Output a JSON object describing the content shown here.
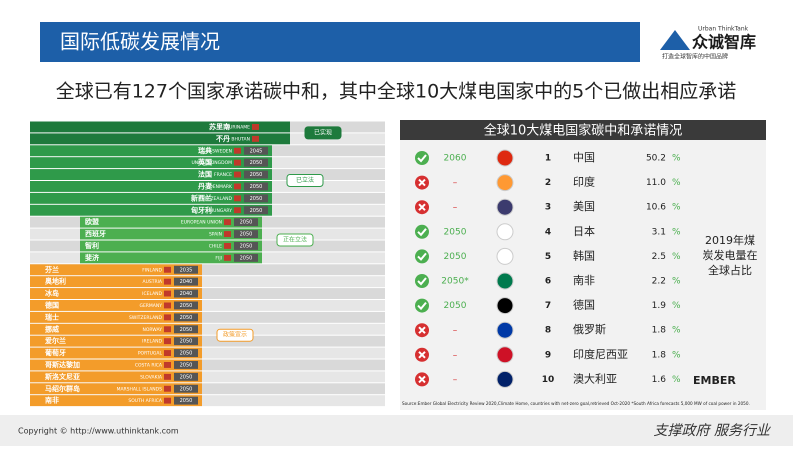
{
  "header": {
    "title": "国际低碳发展情况",
    "logo_en": "Urban ThinkTank",
    "logo_cn": "众诚智库",
    "logo_slogan": "打造全球智库的中国品牌"
  },
  "headline": "全球已有127个国家承诺碳中和，其中全球10大煤电国家中的5个已做出相应承诺",
  "left": {
    "groups": [
      {
        "label": "已实现",
        "rows": [
          {
            "cn": "苏里南",
            "en": "SURINAME",
            "year": null
          },
          {
            "cn": "不丹",
            "en": "BHUTAN",
            "year": null
          }
        ]
      },
      {
        "label": "已立法",
        "rows": [
          {
            "cn": "瑞典",
            "en": "SWEDEN",
            "year": "2045"
          },
          {
            "cn": "英国",
            "en": "UNITED KINGDOM",
            "year": "2050"
          },
          {
            "cn": "法国",
            "en": "FRANCE",
            "year": "2050"
          },
          {
            "cn": "丹麦",
            "en": "DENMARK",
            "year": "2050"
          },
          {
            "cn": "新西兰",
            "en": "NEW ZEALAND",
            "year": "2050"
          },
          {
            "cn": "匈牙利",
            "en": "HUNGARY",
            "year": "2050"
          }
        ]
      },
      {
        "label": "正在立法",
        "rows": [
          {
            "cn": "欧盟",
            "en": "EUROPEAN UNION",
            "year": "2050"
          },
          {
            "cn": "西班牙",
            "en": "SPAIN",
            "year": "2050"
          },
          {
            "cn": "智利",
            "en": "CHILE",
            "year": "2050"
          },
          {
            "cn": "斐济",
            "en": "FIJI",
            "year": "2050"
          }
        ]
      },
      {
        "label": "政策宣示",
        "rows": [
          {
            "cn": "芬兰",
            "en": "FINLAND",
            "year": "2035"
          },
          {
            "cn": "奥地利",
            "en": "AUSTRIA",
            "year": "2040"
          },
          {
            "cn": "冰岛",
            "en": "ICELAND",
            "year": "2040"
          },
          {
            "cn": "德国",
            "en": "GERMANY",
            "year": "2050"
          },
          {
            "cn": "瑞士",
            "en": "SWITZERLAND",
            "year": "2050"
          },
          {
            "cn": "挪威",
            "en": "NORWAY",
            "year": "2050"
          },
          {
            "cn": "爱尔兰",
            "en": "IRELAND",
            "year": "2050"
          },
          {
            "cn": "葡萄牙",
            "en": "PORTUGAL",
            "year": "2050"
          },
          {
            "cn": "哥斯达黎加",
            "en": "COSTA RICA",
            "year": "2050"
          },
          {
            "cn": "斯洛文尼亚",
            "en": "SLOVAKIA",
            "year": "2050"
          },
          {
            "cn": "马绍尔群岛",
            "en": "MARSHALL ISLANDS",
            "year": "2050"
          },
          {
            "cn": "南非",
            "en": "SOUTH AFRICA",
            "year": "2050"
          }
        ]
      }
    ]
  },
  "right": {
    "title": "全球10大煤电国家碳中和承诺情况",
    "percent_sign": "%",
    "side_note": "2019年煤炭发电量在全球占比",
    "brand": "EMBER",
    "source": "Source:Ember Global Electricity Review 2020,Climate Home, countries with net-zero goal,retrieved Oct-2020 *South Africa forecasts 5,000 MW of coal power in 2050.",
    "rows": [
      {
        "status": "yes",
        "year": "2060",
        "rank": "1",
        "country": "中国",
        "share": "50.2"
      },
      {
        "status": "no",
        "year": "–",
        "rank": "2",
        "country": "印度",
        "share": "11.0"
      },
      {
        "status": "no",
        "year": "–",
        "rank": "3",
        "country": "美国",
        "share": "10.6"
      },
      {
        "status": "yes",
        "year": "2050",
        "rank": "4",
        "country": "日本",
        "share": "3.1"
      },
      {
        "status": "yes",
        "year": "2050",
        "rank": "5",
        "country": "韩国",
        "share": "2.5"
      },
      {
        "status": "yes",
        "year": "2050*",
        "rank": "6",
        "country": "南非",
        "share": "2.2"
      },
      {
        "status": "yes",
        "year": "2050",
        "rank": "7",
        "country": "德国",
        "share": "1.9"
      },
      {
        "status": "no",
        "year": "–",
        "rank": "8",
        "country": "俄罗斯",
        "share": "1.8"
      },
      {
        "status": "no",
        "year": "–",
        "rank": "9",
        "country": "印度尼西亚",
        "share": "1.8"
      },
      {
        "status": "no",
        "year": "–",
        "rank": "10",
        "country": "澳大利亚",
        "share": "1.6"
      }
    ]
  },
  "footer": {
    "copyright": "Copyright © http://www.uthinktank.com",
    "motto": "支撑政府 服务行业"
  }
}
